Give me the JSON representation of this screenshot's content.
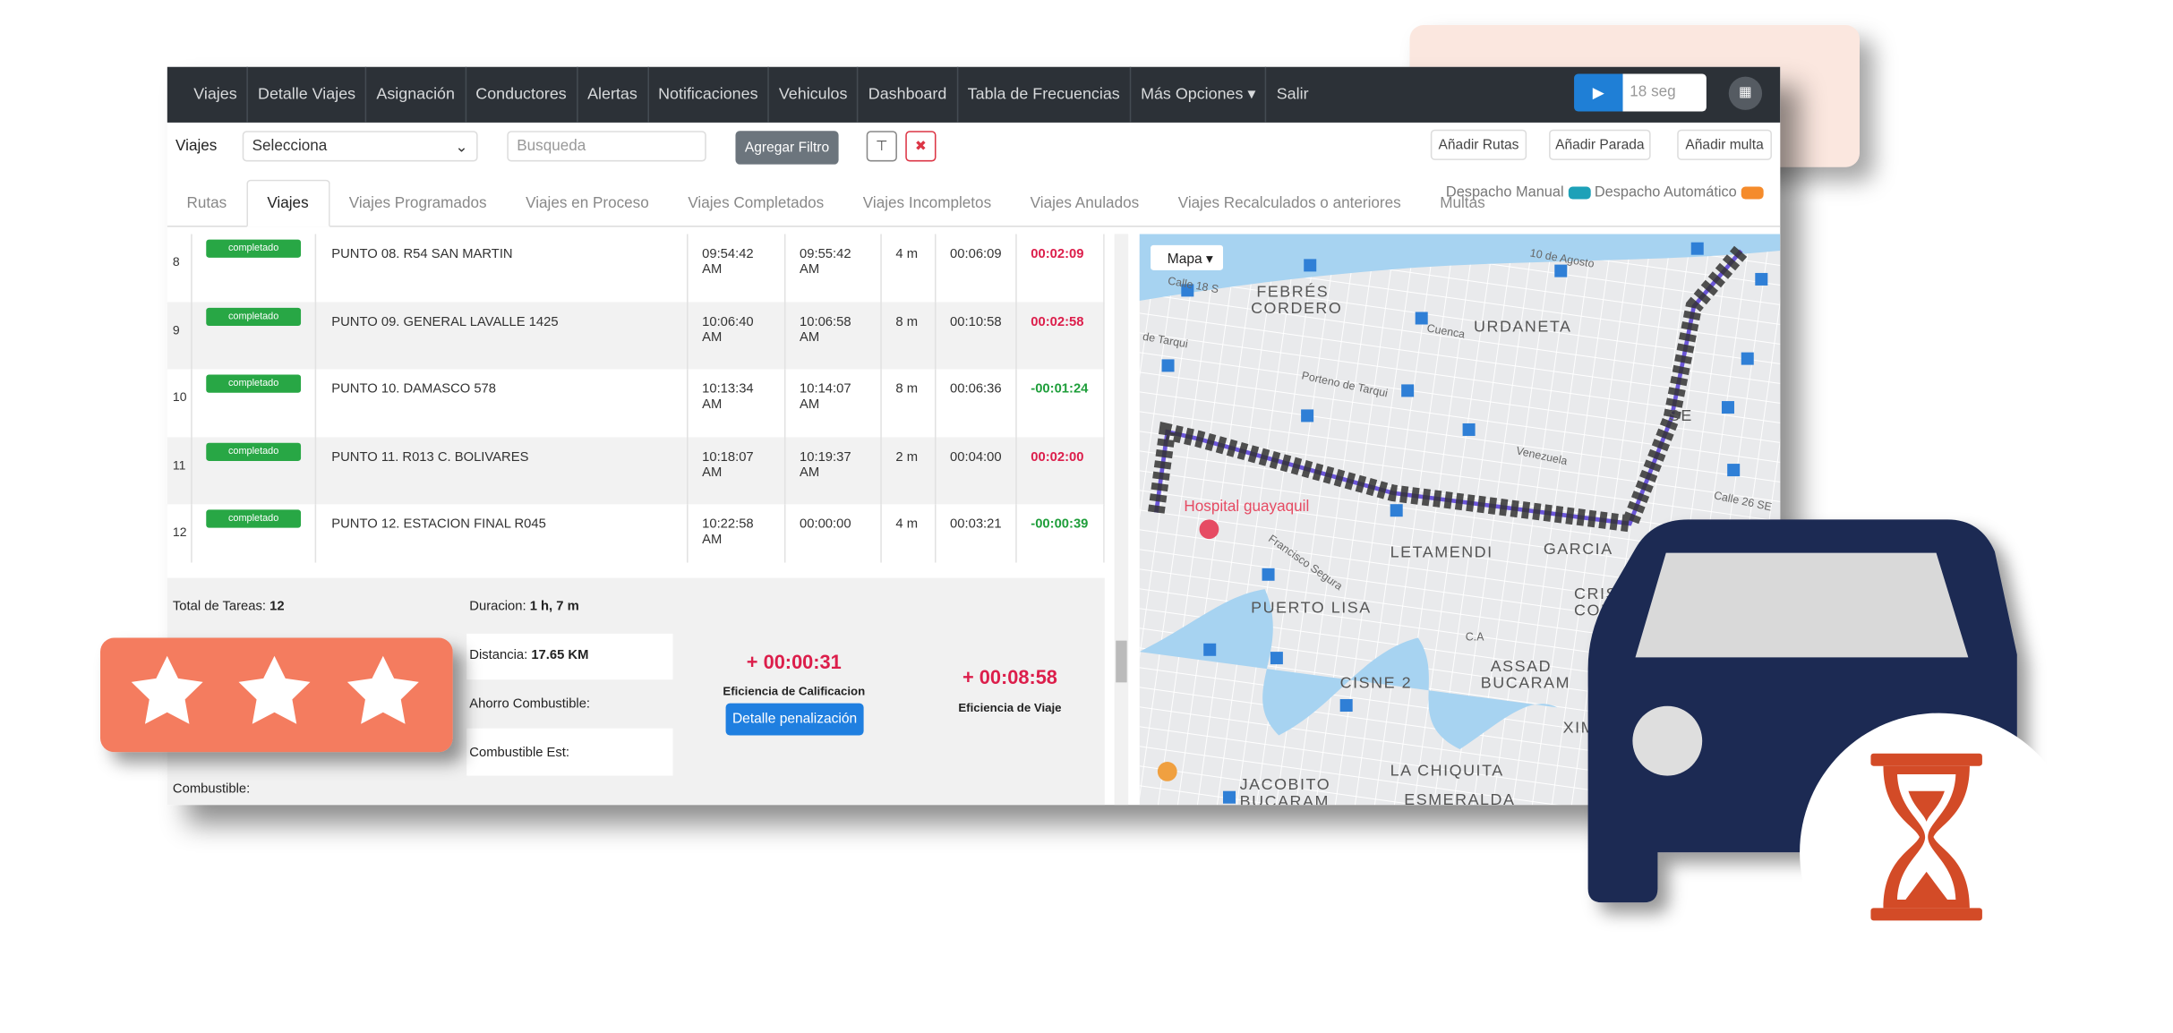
{
  "nav": {
    "items": [
      "Viajes",
      "Detalle Viajes",
      "Asignación",
      "Conductores",
      "Alertas",
      "Notificaciones",
      "Vehiculos",
      "Dashboard",
      "Tabla de Frecuencias",
      "Más Opciones ▾",
      "Salir"
    ],
    "timer": "18 seg"
  },
  "toolbar": {
    "label": "Viajes",
    "select": "Selecciona",
    "search": "Busqueda",
    "filter_button": "Agregar Filtro",
    "buttons": [
      "Añadir Rutas",
      "Añadir Parada",
      "Añadir multa"
    ]
  },
  "tabs": {
    "items": [
      "Rutas",
      "Viajes",
      "Viajes Programados",
      "Viajes en Proceso",
      "Viajes Completados",
      "Viajes Incompletos",
      "Viajes Anulados",
      "Viajes Recalculados o anteriores",
      "Multas"
    ],
    "manual": "Despacho Manual",
    "automatic": "Despacho Automático"
  },
  "table": {
    "rows": [
      [
        "8",
        "completado",
        "PUNTO 08.  R54 SAN MARTIN",
        "09:54:42 AM",
        "09:55:42 AM",
        "4 m",
        "00:06:09",
        "00:02:09"
      ],
      [
        "9",
        "completado",
        "PUNTO 09.  GENERAL LAVALLE 1425",
        "10:06:40 AM",
        "10:06:58 AM",
        "8 m",
        "00:10:58",
        "00:02:58"
      ],
      [
        "10",
        "completado",
        "PUNTO 10.  DAMASCO 578",
        "10:13:34 AM",
        "10:14:07 AM",
        "8 m",
        "00:06:36",
        "-00:01:24"
      ],
      [
        "11",
        "completado",
        "PUNTO 11.  R013 C. BOLIVARES",
        "10:18:07 AM",
        "10:19:37 AM",
        "2 m",
        "00:04:00",
        "00:02:00"
      ],
      [
        "12",
        "completado",
        "PUNTO 12. ESTACION FINAL R045",
        "10:22:58 AM",
        "00:00:00",
        "4 m",
        "00:03:21",
        "-00:00:39"
      ]
    ]
  },
  "summary": {
    "tasks_label": "Total de Tareas:",
    "tasks": "12",
    "duration_label": "Duracion:",
    "duration": "1 h, 7 m",
    "distance_label": "Distancia:",
    "distance": "17.65 KM",
    "saving_label": "Ahorro Combustible:",
    "fuel_est_label": "Combustible Est:",
    "fuel_label": "Combustible:",
    "rating_delta": "+ 00:00:31",
    "rating_label": "Eficiencia de Calificacion",
    "penalty_button": "Detalle penalización",
    "trip_delta": "+ 00:08:58",
    "trip_label": "Eficiencia de Viaje"
  },
  "map": {
    "button": "Mapa ▾",
    "labels": [
      "FEBRÉS",
      "CORDERO",
      "URDANETA",
      "LETAMENDI",
      "GARCIA",
      "PUERTO LISA",
      "CRISTO",
      "CONSU",
      "ASSAD",
      "BUCARAM",
      "CISNE 2",
      "XIMEN",
      "LA CHIQUITA",
      "JACOBITO",
      "BUCARAM",
      "ESMERALDA",
      "Hospital guayaquil",
      "10 de Agosto",
      "Cuenca",
      "Porteno de Tarqui",
      "Venezuela",
      "Francisco Segura",
      "Calle 26 SE",
      "C.A",
      "Calle 18 S",
      "de Tarqui",
      "SE"
    ]
  }
}
